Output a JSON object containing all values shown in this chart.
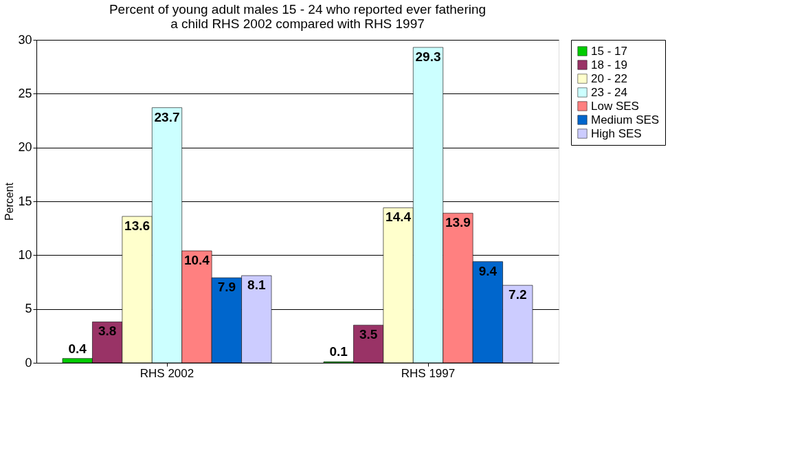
{
  "chart_data": {
    "type": "bar",
    "title": "Percent of young adult males 15 - 24 who reported ever fathering\na child RHS 2002 compared with RHS 1997",
    "ylabel": "Percent",
    "categories": [
      "RHS 2002",
      "RHS 1997"
    ],
    "series": [
      {
        "name": "15 - 17",
        "color": "#00cc00",
        "values": [
          0.4,
          0.1
        ]
      },
      {
        "name": "18 - 19",
        "color": "#993366",
        "values": [
          3.8,
          3.5
        ]
      },
      {
        "name": "20 - 22",
        "color": "#ffffcc",
        "values": [
          13.6,
          14.4
        ]
      },
      {
        "name": "23 - 24",
        "color": "#ccffff",
        "values": [
          23.7,
          29.3
        ]
      },
      {
        "name": "Low SES",
        "color": "#ff8080",
        "values": [
          10.4,
          13.9
        ]
      },
      {
        "name": "Medium SES",
        "color": "#0066cc",
        "values": [
          7.9,
          9.4
        ]
      },
      {
        "name": "High SES",
        "color": "#ccccff",
        "values": [
          8.1,
          7.2
        ]
      }
    ],
    "ylim": [
      0,
      30
    ],
    "yticks": [
      0,
      5,
      10,
      15,
      20,
      25,
      30
    ],
    "grid": "y",
    "legend": "right",
    "data_labels": true
  }
}
